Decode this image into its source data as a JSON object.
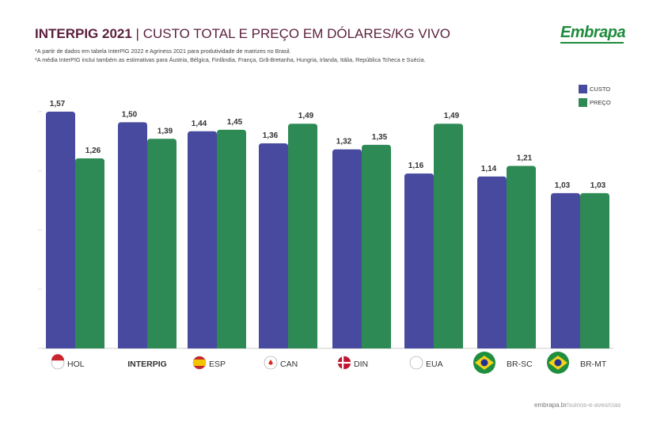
{
  "header": {
    "title_bold": "INTERPIG 2021",
    "separator": " | ",
    "title_rest": "CUSTO TOTAL E PREÇO EM DÓLARES/KG VIVO",
    "logo_text": "Embrapa"
  },
  "notes": [
    "*A partir de dados em tabela InterPIG 2022 e Agriness 2021 para produtividade de matrizes no Brasil.",
    "*A média InterPIG inclui também as estimativas para Áustria, Bélgica, Finlândia, França, Grã-Bretanha, Hungria, Irlanda, Itália, República Tcheca e Suécia."
  ],
  "footer": {
    "domain": "embrapa.br",
    "path": "/suinos-e-aves/cias"
  },
  "colors": {
    "custo": "#474a9f",
    "preco": "#2e8a54",
    "title": "#5b1f3c",
    "label": "#333333"
  },
  "chart_data": {
    "type": "bar",
    "categories": [
      "HOL",
      "INTERPIG",
      "ESP",
      "CAN",
      "DIN",
      "EUA",
      "BR-SC",
      "BR-MT"
    ],
    "category_icons": [
      "netherlands-flag-icon",
      "",
      "spain-flag-icon",
      "canada-flag-icon",
      "denmark-flag-icon",
      "usa-flag-icon",
      "brazil-flag-icon",
      "brazil-flag-icon"
    ],
    "series": [
      {
        "name": "CUSTO",
        "values": [
          1.57,
          1.5,
          1.44,
          1.36,
          1.32,
          1.16,
          1.14,
          1.03
        ],
        "labels": [
          "1,57",
          "1,50",
          "1,44",
          "1,36",
          "1,32",
          "1,16",
          "1,14",
          "1,03"
        ]
      },
      {
        "name": "PREÇO",
        "values": [
          1.26,
          1.39,
          1.45,
          1.49,
          1.35,
          1.49,
          1.21,
          1.03
        ],
        "labels": [
          "1,26",
          "1,39",
          "1,45",
          "1,49",
          "1,35",
          "1,49",
          "1,21",
          "1,03"
        ]
      }
    ],
    "ylim": [
      0,
      1.6
    ],
    "grid": false,
    "legend_position": "top-right",
    "xlabel": "",
    "ylabel": ""
  }
}
